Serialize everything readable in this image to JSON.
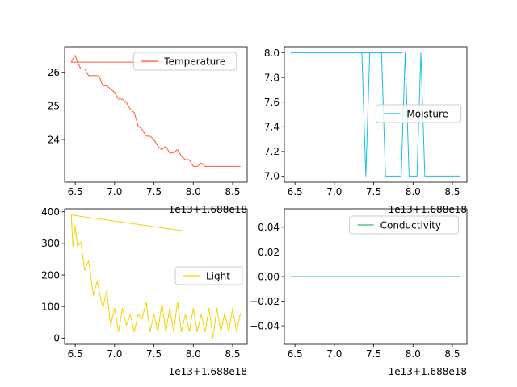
{
  "chart_data": [
    {
      "type": "line",
      "title": "",
      "xlabel": "",
      "ylabel": "",
      "offset_text": "1e13+1.688e18",
      "xlim": [
        6.365,
        8.685
      ],
      "ylim": [
        22.73,
        26.76
      ],
      "xticks": [
        6.5,
        7.0,
        7.5,
        8.0,
        8.5
      ],
      "xtick_labels": [
        "6.5",
        "7.0",
        "7.5",
        "8.0",
        "8.5"
      ],
      "yticks": [
        24,
        25,
        26
      ],
      "ytick_labels": [
        "24",
        "25",
        "26"
      ],
      "grid": false,
      "legend_position": "upper right",
      "series": [
        {
          "name": "Temperature",
          "color": "#FF5733",
          "x": [
            7.87,
            6.45,
            6.47,
            6.5,
            6.53,
            6.57,
            6.62,
            6.67,
            6.73,
            6.8,
            6.85,
            6.9,
            6.95,
            7.0,
            7.05,
            7.1,
            7.15,
            7.2,
            7.25,
            7.3,
            7.35,
            7.4,
            7.45,
            7.5,
            7.55,
            7.6,
            7.65,
            7.7,
            7.75,
            7.8,
            7.85,
            7.9,
            7.95,
            8.0,
            8.05,
            8.1,
            8.15,
            8.2,
            8.25,
            8.3,
            8.35,
            8.4,
            8.45,
            8.5,
            8.55,
            8.6
          ],
          "values": [
            26.3,
            26.3,
            26.4,
            26.5,
            26.3,
            26.1,
            26.1,
            25.9,
            25.9,
            25.9,
            25.6,
            25.6,
            25.5,
            25.4,
            25.2,
            25.2,
            25.1,
            24.9,
            24.8,
            24.4,
            24.3,
            24.1,
            24.1,
            24.0,
            23.8,
            23.7,
            23.8,
            23.6,
            23.6,
            23.7,
            23.5,
            23.4,
            23.4,
            23.2,
            23.2,
            23.3,
            23.2,
            23.2,
            23.2,
            23.2,
            23.2,
            23.2,
            23.2,
            23.2,
            23.2,
            23.2
          ]
        }
      ]
    },
    {
      "type": "line",
      "title": "",
      "xlabel": "",
      "ylabel": "",
      "offset_text": "1e13+1.688e18",
      "xlim": [
        6.365,
        8.685
      ],
      "ylim": [
        6.95,
        8.05
      ],
      "xticks": [
        6.5,
        7.0,
        7.5,
        8.0,
        8.5
      ],
      "xtick_labels": [
        "6.5",
        "7.0",
        "7.5",
        "8.0",
        "8.5"
      ],
      "yticks": [
        7.0,
        7.2,
        7.4,
        7.6,
        7.8,
        8.0
      ],
      "ytick_labels": [
        "7.0",
        "7.2",
        "7.4",
        "7.6",
        "7.8",
        "8.0"
      ],
      "grid": false,
      "legend_position": "center right",
      "series": [
        {
          "name": "Moisture",
          "color": "#17BFE8",
          "x": [
            7.87,
            6.45,
            7.35,
            7.4,
            7.45,
            7.5,
            7.6,
            7.65,
            7.7,
            7.75,
            7.8,
            7.85,
            7.9,
            7.95,
            8.0,
            8.05,
            8.1,
            8.15,
            8.2,
            8.25,
            8.3,
            8.35,
            8.4,
            8.45,
            8.5,
            8.55,
            8.6
          ],
          "values": [
            8.0,
            8.0,
            8.0,
            7.0,
            8.0,
            8.0,
            8.0,
            7.0,
            7.0,
            7.0,
            7.0,
            7.0,
            8.0,
            7.0,
            7.0,
            7.0,
            8.0,
            7.0,
            7.0,
            7.0,
            7.0,
            7.0,
            7.0,
            7.0,
            7.0,
            7.0,
            7.0
          ]
        }
      ]
    },
    {
      "type": "line",
      "title": "",
      "xlabel": "",
      "ylabel": "",
      "offset_text": "1e13+1.688e18",
      "xlim": [
        6.365,
        8.685
      ],
      "ylim": [
        -19.5,
        409.5
      ],
      "xticks": [
        6.5,
        7.0,
        7.5,
        8.0,
        8.5
      ],
      "xtick_labels": [
        "6.5",
        "7.0",
        "7.5",
        "8.0",
        "8.5"
      ],
      "yticks": [
        0,
        100,
        200,
        300,
        400
      ],
      "ytick_labels": [
        "0",
        "100",
        "200",
        "300",
        "400"
      ],
      "grid": false,
      "legend_position": "center right",
      "series": [
        {
          "name": "Light",
          "color": "#F5D300",
          "x": [
            7.87,
            6.45,
            6.47,
            6.5,
            6.53,
            6.57,
            6.62,
            6.67,
            6.73,
            6.78,
            6.85,
            6.9,
            6.95,
            7.0,
            7.05,
            7.1,
            7.15,
            7.2,
            7.25,
            7.3,
            7.35,
            7.4,
            7.45,
            7.5,
            7.55,
            7.6,
            7.65,
            7.7,
            7.75,
            7.8,
            7.85,
            7.9,
            7.95,
            8.0,
            8.05,
            8.1,
            8.15,
            8.2,
            8.25,
            8.3,
            8.35,
            8.4,
            8.45,
            8.5,
            8.55,
            8.6
          ],
          "values": [
            340,
            390,
            290,
            355,
            290,
            305,
            215,
            245,
            135,
            180,
            95,
            150,
            40,
            95,
            20,
            95,
            40,
            75,
            20,
            75,
            60,
            115,
            20,
            75,
            20,
            110,
            20,
            95,
            20,
            115,
            20,
            75,
            20,
            95,
            20,
            75,
            20,
            95,
            0,
            95,
            20,
            80,
            20,
            95,
            20,
            80
          ]
        }
      ]
    },
    {
      "type": "line",
      "title": "",
      "xlabel": "",
      "ylabel": "",
      "offset_text": "1e13+1.688e18",
      "xlim": [
        6.365,
        8.685
      ],
      "ylim": [
        -0.055,
        0.055
      ],
      "xticks": [
        6.5,
        7.0,
        7.5,
        8.0,
        8.5
      ],
      "xtick_labels": [
        "6.5",
        "7.0",
        "7.5",
        "8.0",
        "8.5"
      ],
      "yticks": [
        -0.04,
        -0.02,
        0.0,
        0.02,
        0.04
      ],
      "ytick_labels": [
        "−0.04",
        "−0.02",
        "0.00",
        "0.02",
        "0.04"
      ],
      "grid": false,
      "legend_position": "upper right",
      "series": [
        {
          "name": "Conductivity",
          "color": "#2EBD6E",
          "x": [
            7.87,
            6.45,
            8.6
          ],
          "values": [
            0.0,
            0.0,
            0.0
          ]
        }
      ]
    }
  ]
}
